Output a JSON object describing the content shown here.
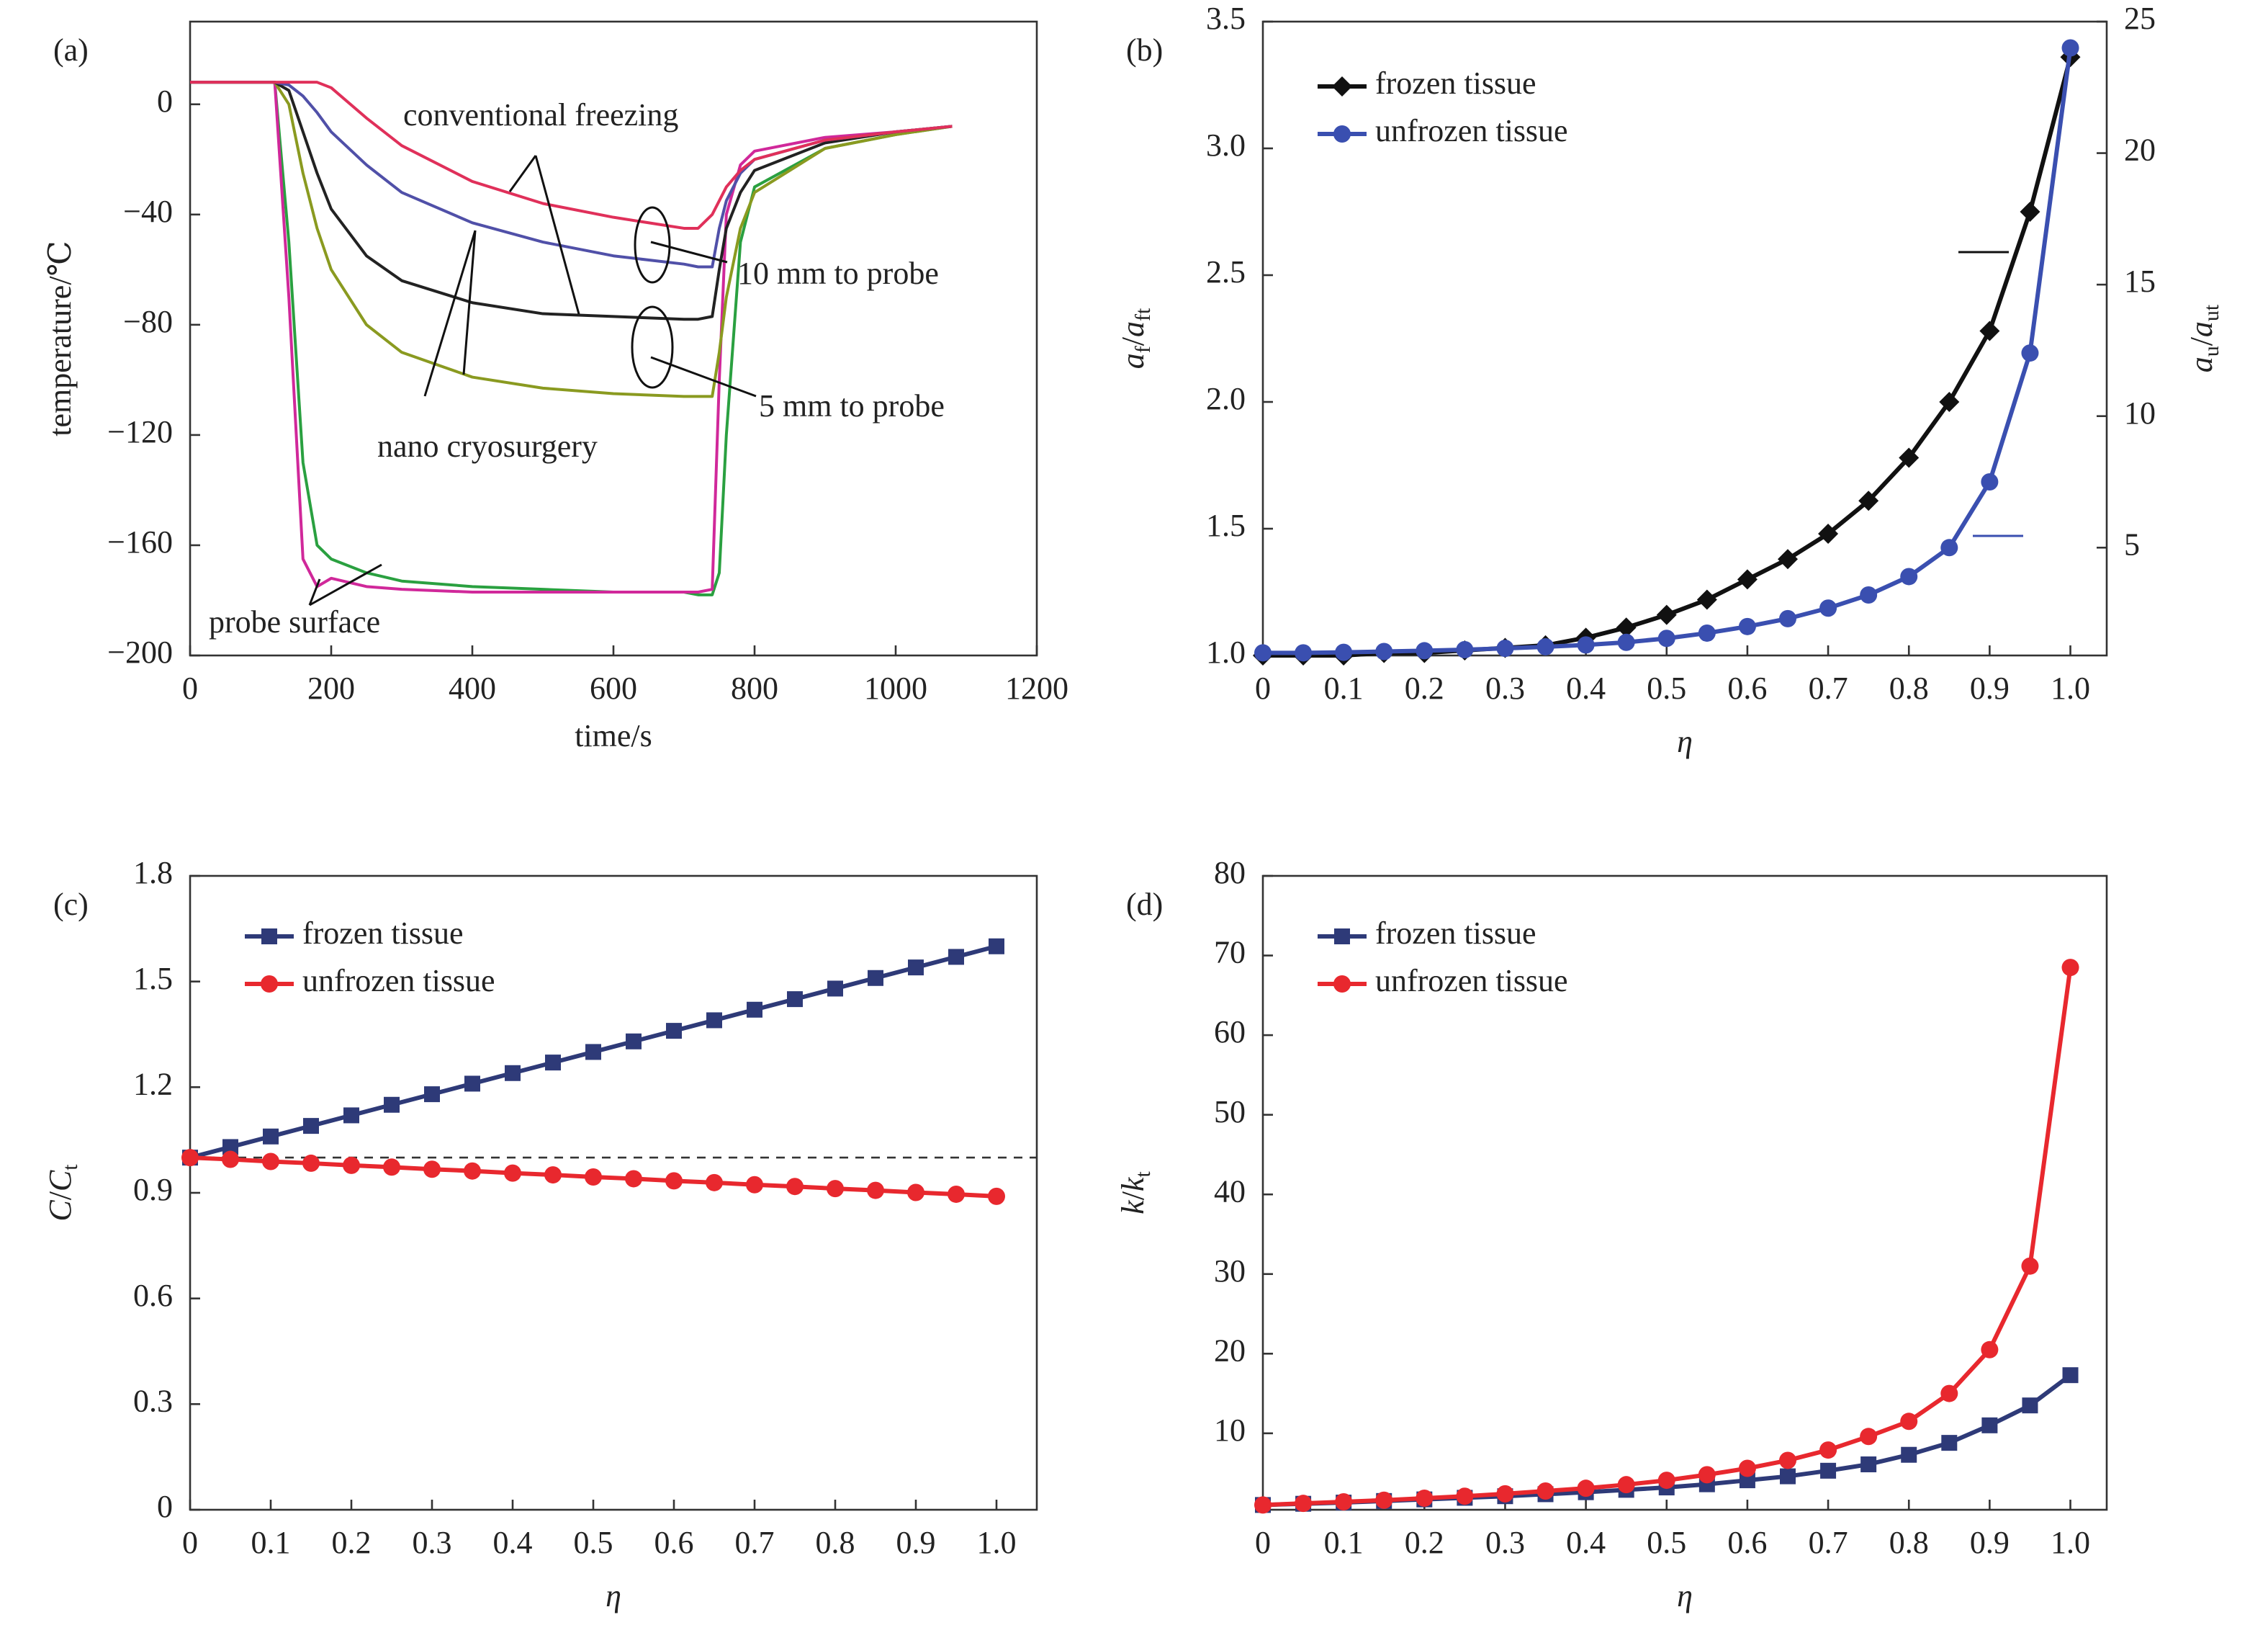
{
  "chart_data": [
    {
      "type": "line",
      "label": "(a)",
      "xlabel": "time/s",
      "ylabel": [
        {
          "text": "temperature/℃"
        }
      ],
      "xlim": [
        0,
        1200
      ],
      "xticks": [
        0,
        200,
        400,
        600,
        800,
        1000,
        1200
      ],
      "ylim": [
        -200,
        30
      ],
      "yticks": [
        0,
        {
          "value": -40,
          "label": "−40"
        },
        {
          "value": -80,
          "label": "−80"
        },
        {
          "value": -120,
          "label": "−120"
        },
        {
          "value": -160,
          "label": "−160"
        },
        {
          "value": -200,
          "label": "−200"
        }
      ],
      "x": [
        0,
        100,
        120,
        140,
        160,
        180,
        200,
        250,
        300,
        400,
        500,
        600,
        700,
        720,
        740,
        750,
        760,
        780,
        800,
        900,
        1000,
        1080
      ],
      "series": [
        {
          "color": "#2aa040",
          "values": [
            8,
            8,
            8,
            -50,
            -130,
            -160,
            -165,
            -170,
            -173,
            -175,
            -176,
            -177,
            -177,
            -178,
            -178,
            -170,
            -120,
            -50,
            -30,
            -16,
            -11,
            -8
          ]
        },
        {
          "color": "#d0289a",
          "values": [
            8,
            8,
            8,
            -70,
            -165,
            -175,
            -172,
            -175,
            -176,
            -177,
            -177,
            -177,
            -177,
            -177,
            -176,
            -100,
            -40,
            -22,
            -17,
            -12,
            -10,
            -8
          ]
        },
        {
          "color": "#8a9a20",
          "values": [
            8,
            8,
            8,
            0,
            -25,
            -45,
            -60,
            -80,
            -90,
            -99,
            -103,
            -105,
            -106,
            -106,
            -106,
            -90,
            -70,
            -45,
            -32,
            -16,
            -11,
            -8
          ]
        },
        {
          "color": "#222222",
          "values": [
            8,
            8,
            8,
            5,
            -10,
            -25,
            -38,
            -55,
            -64,
            -72,
            -76,
            -77,
            -78,
            -78,
            -77,
            -60,
            -45,
            -32,
            -24,
            -14,
            -10,
            -8
          ]
        },
        {
          "color": "#5050a8",
          "values": [
            8,
            8,
            8,
            7,
            3,
            -3,
            -10,
            -22,
            -32,
            -43,
            -50,
            -55,
            -58,
            -59,
            -59,
            -45,
            -35,
            -25,
            -20,
            -13,
            -10,
            -8
          ]
        },
        {
          "color": "#e0305a",
          "values": [
            8,
            8,
            8,
            8,
            8,
            8,
            6,
            -5,
            -15,
            -28,
            -36,
            -41,
            -45,
            -45,
            -40,
            -35,
            -30,
            -24,
            -20,
            -13,
            -10,
            -8
          ]
        }
      ],
      "annotations": [
        "conventional freezing",
        "nano cryosurgery",
        "10 mm to probe",
        "5 mm to probe",
        "probe surface"
      ]
    },
    {
      "type": "line",
      "label": "(b)",
      "xlabel": [
        {
          "text": "η",
          "italic": true
        }
      ],
      "ylabel": [
        {
          "text": "a",
          "italic": true
        },
        {
          "text": "f",
          "sub": true
        },
        {
          "text": "/"
        },
        {
          "text": "a",
          "italic": true
        },
        {
          "text": "ft",
          "sub": true
        }
      ],
      "y2label": [
        {
          "text": "a",
          "italic": true
        },
        {
          "text": "u",
          "sub": true
        },
        {
          "text": "/"
        },
        {
          "text": "a",
          "italic": true
        },
        {
          "text": "ut",
          "sub": true
        }
      ],
      "xlim": [
        0,
        1.045
      ],
      "xticks": [
        0,
        0.1,
        0.2,
        0.3,
        0.4,
        0.5,
        0.6,
        0.7,
        0.8,
        0.9,
        {
          "value": 1,
          "label": "1.0"
        }
      ],
      "ylim": [
        1,
        3.5
      ],
      "yticks": [
        {
          "value": 1,
          "label": "1.0"
        },
        1.5,
        {
          "value": 2,
          "label": "2.0"
        },
        2.5,
        {
          "value": 3,
          "label": "3.0"
        },
        3.5
      ],
      "y2lim": [
        0.9,
        25
      ],
      "y2ticks": [
        5,
        10,
        15,
        20,
        25
      ],
      "legend": "upper left",
      "x": [
        0,
        0.05,
        0.1,
        0.15,
        0.2,
        0.25,
        0.3,
        0.35,
        0.4,
        0.45,
        0.5,
        0.55,
        0.6,
        0.65,
        0.7,
        0.75,
        0.8,
        0.85,
        0.9,
        0.95,
        1
      ],
      "series": [
        {
          "name": "frozen tissue",
          "color": "#111111",
          "marker": "diamond",
          "values": [
            1.0,
            1.0,
            1.0,
            1.01,
            1.01,
            1.02,
            1.03,
            1.04,
            1.07,
            1.11,
            1.16,
            1.22,
            1.3,
            1.38,
            1.48,
            1.61,
            1.78,
            2.0,
            2.28,
            2.75,
            3.36
          ]
        },
        {
          "name": "unfrozen tissue",
          "color": "#3a4fb0",
          "marker": "circle",
          "axis": "y2",
          "values": [
            1.0,
            1.0,
            1.02,
            1.05,
            1.08,
            1.12,
            1.17,
            1.23,
            1.3,
            1.4,
            1.55,
            1.75,
            2.0,
            2.3,
            2.7,
            3.2,
            3.9,
            5.0,
            7.5,
            12.4,
            24.0
          ]
        }
      ]
    },
    {
      "type": "line",
      "label": "(c)",
      "xlabel": [
        {
          "text": "η",
          "italic": true
        }
      ],
      "ylabel": [
        {
          "text": "C",
          "italic": true
        },
        {
          "text": "/"
        },
        {
          "text": "C",
          "italic": true
        },
        {
          "text": "t",
          "sub": true
        }
      ],
      "xlim": [
        0,
        1.05
      ],
      "xticks": [
        0,
        0.1,
        0.2,
        0.3,
        0.4,
        0.5,
        0.6,
        0.7,
        0.8,
        0.9,
        {
          "value": 1,
          "label": "1.0"
        }
      ],
      "ylim": [
        0,
        1.8
      ],
      "yticks": [
        0,
        0.3,
        0.6,
        0.9,
        1.2,
        1.5,
        1.8
      ],
      "hline": 1,
      "legend": "upper left",
      "x": [
        0,
        0.05,
        0.1,
        0.15,
        0.2,
        0.25,
        0.3,
        0.35,
        0.4,
        0.45,
        0.5,
        0.55,
        0.6,
        0.65,
        0.7,
        0.75,
        0.8,
        0.85,
        0.9,
        0.95,
        1
      ],
      "series": [
        {
          "name": "frozen tissue",
          "color": "#2e3a78",
          "marker": "square",
          "values": [
            1.0,
            1.03,
            1.06,
            1.09,
            1.12,
            1.15,
            1.18,
            1.21,
            1.24,
            1.27,
            1.3,
            1.33,
            1.36,
            1.39,
            1.42,
            1.45,
            1.48,
            1.51,
            1.54,
            1.57,
            1.6
          ]
        },
        {
          "name": "unfrozen tissue",
          "color": "#e8282e",
          "marker": "circle",
          "values": [
            1.0,
            0.995,
            0.989,
            0.984,
            0.978,
            0.973,
            0.967,
            0.962,
            0.956,
            0.951,
            0.945,
            0.94,
            0.934,
            0.929,
            0.923,
            0.918,
            0.912,
            0.907,
            0.901,
            0.896,
            0.89
          ]
        }
      ]
    },
    {
      "type": "line",
      "label": "(d)",
      "xlabel": [
        {
          "text": "η",
          "italic": true
        }
      ],
      "ylabel": [
        {
          "text": "k",
          "italic": true
        },
        {
          "text": "/"
        },
        {
          "text": "k",
          "italic": true
        },
        {
          "text": "t",
          "sub": true
        }
      ],
      "xlim": [
        0,
        1.045
      ],
      "xticks": [
        0,
        0.1,
        0.2,
        0.3,
        0.4,
        0.5,
        0.6,
        0.7,
        0.8,
        0.9,
        {
          "value": 1,
          "label": "1.0"
        }
      ],
      "ylim": [
        0.4,
        80
      ],
      "yticks": [
        10,
        20,
        30,
        40,
        50,
        60,
        70,
        80
      ],
      "legend": "upper left",
      "x": [
        0,
        0.05,
        0.1,
        0.15,
        0.2,
        0.25,
        0.3,
        0.35,
        0.4,
        0.45,
        0.5,
        0.55,
        0.6,
        0.65,
        0.7,
        0.75,
        0.8,
        0.85,
        0.9,
        0.95,
        1
      ],
      "series": [
        {
          "name": "frozen tissue",
          "color": "#2e3a78",
          "marker": "square",
          "values": [
            1.0,
            1.15,
            1.3,
            1.5,
            1.7,
            1.9,
            2.1,
            2.35,
            2.6,
            2.9,
            3.2,
            3.6,
            4.1,
            4.6,
            5.3,
            6.1,
            7.3,
            8.8,
            11,
            13.5,
            17.3
          ]
        },
        {
          "name": "unfrozen tissue",
          "color": "#e8282e",
          "marker": "circle",
          "values": [
            1.0,
            1.2,
            1.4,
            1.6,
            1.85,
            2.1,
            2.4,
            2.75,
            3.1,
            3.55,
            4.1,
            4.8,
            5.6,
            6.6,
            7.9,
            9.6,
            11.5,
            15,
            20.5,
            31,
            68.5
          ]
        }
      ]
    }
  ]
}
